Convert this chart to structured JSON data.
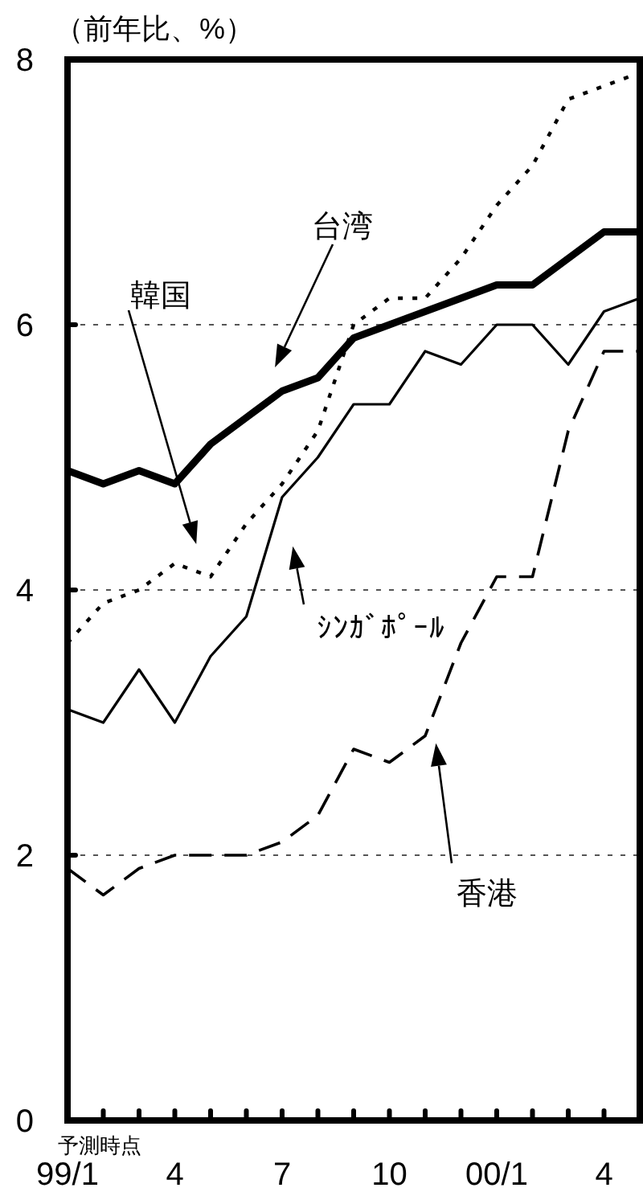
{
  "chart_data": {
    "type": "line",
    "ylabel": "（前年比、%）",
    "xlabel": "予測時点",
    "categories": [
      "99/1",
      null,
      null,
      "4",
      null,
      null,
      "7",
      null,
      null,
      "10",
      null,
      null,
      "00/1",
      null,
      null,
      "4",
      null
    ],
    "ylim": [
      0,
      8
    ],
    "yticks": [
      0,
      2,
      4,
      6,
      8
    ],
    "grid": "y",
    "series": [
      {
        "color": "#000000",
        "line_style": "solid",
        "values": [
          4.9,
          4.8,
          4.9,
          4.8,
          5.1,
          5.3,
          5.5,
          5.6,
          5.9,
          6.0,
          6.1,
          6.2,
          6.3,
          6.3,
          6.5,
          6.7,
          6.7
        ]
      },
      {
        "color": "#000000",
        "line_style": "dotted",
        "values": [
          3.6,
          3.9,
          4.0,
          4.2,
          4.1,
          4.5,
          4.8,
          5.2,
          6.0,
          6.2,
          6.2,
          6.5,
          6.9,
          7.2,
          7.7,
          7.8,
          7.9
        ]
      },
      {
        "color": "#000000",
        "line_style": "solid",
        "values": [
          3.1,
          3.0,
          3.4,
          3.0,
          3.5,
          3.8,
          4.7,
          5.0,
          5.4,
          5.4,
          5.8,
          5.7,
          6.0,
          6.0,
          5.7,
          6.1,
          6.2
        ]
      },
      {
        "color": "#000000",
        "line_style": "dashed",
        "values": [
          1.9,
          1.7,
          1.9,
          2.0,
          2.0,
          2.0,
          2.1,
          2.3,
          2.8,
          2.7,
          2.9,
          3.6,
          4.1,
          4.1,
          5.2,
          5.8,
          5.8
        ]
      }
    ],
    "annotations": [
      "台湾",
      "韓国",
      "ｼﾝｶﾞﾎﾟｰﾙ",
      "香港"
    ]
  }
}
